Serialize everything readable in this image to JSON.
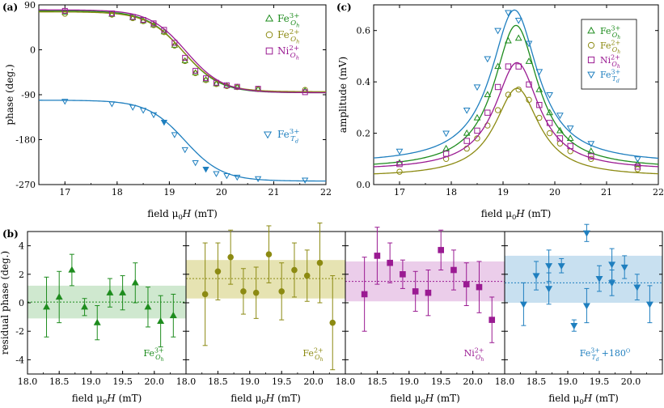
{
  "colors": {
    "green": "#1e8c1e",
    "olive": "#8c8a12",
    "purple": "#9a1a92",
    "blue": "#1f7fbf",
    "green_band": "#cfe8cf",
    "olive_band": "#e6e3b2",
    "purple_band": "#ebcdea",
    "blue_band": "#c8e0f0",
    "axis": "#000000"
  },
  "labels": {
    "panel_a": "(a)",
    "panel_b": "(b)",
    "panel_c": "(c)",
    "field_prefix": "field μ",
    "field_sub": "0",
    "field_var": "H",
    "field_unit": " (mT)",
    "phase_ylabel": "phase (deg.)",
    "amp_ylabel": "amplitude (mV)",
    "resid_ylabel": "residual phase (deg.)",
    "species": [
      {
        "id": "fe3oh",
        "base": "Fe",
        "sup": "3+",
        "sub": "Oh"
      },
      {
        "id": "fe2oh",
        "base": "Fe",
        "sup": "2+",
        "sub": "Oh"
      },
      {
        "id": "ni2oh",
        "base": "Ni",
        "sup": "2+",
        "sub": "Oh"
      },
      {
        "id": "fe3td",
        "base": "Fe",
        "sup": "3+",
        "sub": "Td"
      }
    ],
    "suffix_180": "+180",
    "suffix_180_sup": "O"
  },
  "chart_data": [
    {
      "id": "a",
      "type": "scatter",
      "title": "",
      "xlabel": "field μ0H (mT)",
      "ylabel": "phase (deg.)",
      "xlim": [
        16.5,
        22
      ],
      "ylim": [
        -270,
        90
      ],
      "xticks": [
        17,
        18,
        19,
        20,
        21,
        22
      ],
      "yticks": [
        90,
        0,
        -90,
        -180,
        -270
      ],
      "series": [
        {
          "name": "Fe3+ Oh",
          "x": [
            17,
            17.9,
            18.3,
            18.5,
            18.7,
            18.9,
            19.1,
            19.3,
            19.5,
            19.7,
            19.9,
            20.1,
            20.3,
            20.7,
            21.6
          ],
          "y": [
            75,
            71,
            64,
            58,
            50,
            36,
            9,
            -22,
            -46,
            -60,
            -68,
            -72,
            -75,
            -79,
            -82
          ]
        },
        {
          "name": "Fe2+ Oh",
          "x": [
            17,
            17.9,
            18.3,
            18.5,
            18.7,
            18.9,
            19.1,
            19.3,
            19.5,
            19.7,
            19.9,
            20.1,
            20.3,
            20.7,
            21.6
          ],
          "y": [
            72,
            70,
            63,
            57,
            49,
            35,
            8,
            -23,
            -47,
            -61,
            -69,
            -73,
            -75,
            -79,
            -80
          ]
        },
        {
          "name": "Ni2+ Oh",
          "x": [
            17,
            17.9,
            18.3,
            18.5,
            18.7,
            18.9,
            19.1,
            19.3,
            19.5,
            19.7,
            19.9,
            20.1,
            20.3,
            20.7,
            21.6
          ],
          "y": [
            78,
            73,
            66,
            60,
            53,
            40,
            14,
            -16,
            -42,
            -57,
            -66,
            -71,
            -74,
            -78,
            -85
          ]
        },
        {
          "name": "Fe3+ Td",
          "x": [
            17,
            17.9,
            18.3,
            18.5,
            18.7,
            18.9,
            19.1,
            19.3,
            19.5,
            19.7,
            19.9,
            20.1,
            20.3,
            20.7,
            21.6
          ],
          "y": [
            -103,
            -108,
            -115,
            -121,
            -130,
            -145,
            -170,
            -200,
            -226,
            -239,
            -248,
            -252,
            -255,
            -258,
            -261
          ]
        }
      ],
      "fit_curves": "sigmoid per series"
    },
    {
      "id": "c",
      "type": "scatter",
      "title": "",
      "xlabel": "field μ0H (mT)",
      "ylabel": "amplitude (mV)",
      "xlim": [
        16.5,
        22
      ],
      "ylim": [
        0,
        0.7
      ],
      "xticks": [
        17,
        18,
        19,
        20,
        21,
        22
      ],
      "yticks": [
        0,
        0.2,
        0.4,
        0.6
      ],
      "series": [
        {
          "name": "Fe3+ Oh",
          "x": [
            17,
            17.9,
            18.3,
            18.5,
            18.7,
            18.9,
            19.1,
            19.3,
            19.5,
            19.7,
            19.9,
            20.1,
            20.3,
            20.7,
            21.6
          ],
          "y": [
            0.085,
            0.14,
            0.2,
            0.26,
            0.35,
            0.46,
            0.56,
            0.57,
            0.48,
            0.37,
            0.28,
            0.21,
            0.18,
            0.13,
            0.08
          ]
        },
        {
          "name": "Fe2+ Oh",
          "x": [
            17,
            17.9,
            18.3,
            18.5,
            18.7,
            18.9,
            19.1,
            19.3,
            19.5,
            19.7,
            19.9,
            20.1,
            20.3,
            20.7,
            21.6
          ],
          "y": [
            0.05,
            0.1,
            0.14,
            0.18,
            0.23,
            0.29,
            0.35,
            0.37,
            0.33,
            0.26,
            0.2,
            0.16,
            0.13,
            0.1,
            0.06
          ]
        },
        {
          "name": "Ni2+ Oh",
          "x": [
            17,
            17.9,
            18.3,
            18.5,
            18.7,
            18.9,
            19.1,
            19.3,
            19.5,
            19.7,
            19.9,
            20.1,
            20.3,
            20.7,
            21.6
          ],
          "y": [
            0.08,
            0.12,
            0.17,
            0.21,
            0.28,
            0.38,
            0.46,
            0.46,
            0.39,
            0.31,
            0.24,
            0.18,
            0.15,
            0.11,
            0.07
          ]
        },
        {
          "name": "Fe3+ Td",
          "x": [
            17,
            17.9,
            18.3,
            18.5,
            18.7,
            18.9,
            19.1,
            19.3,
            19.5,
            19.7,
            19.9,
            20.1,
            20.3,
            20.7,
            21.6
          ],
          "y": [
            0.13,
            0.2,
            0.29,
            0.38,
            0.49,
            0.6,
            0.67,
            0.64,
            0.55,
            0.44,
            0.35,
            0.27,
            0.22,
            0.16,
            0.1
          ]
        }
      ],
      "fit_curves": "lorentzian per series"
    },
    {
      "id": "b1",
      "type": "scatter",
      "xlabel": "field μ0H (mT)",
      "ylabel": "residual phase (deg.)",
      "xlim": [
        18.0,
        20.5
      ],
      "ylim": [
        -5,
        5
      ],
      "xticks": [
        18.0,
        18.5,
        19.0,
        19.5,
        20.0
      ],
      "yticks": [
        -4,
        -2,
        0,
        2,
        4
      ],
      "mean": 0.05,
      "band": [
        -1.1,
        1.2
      ],
      "series": [
        {
          "name": "Fe3+ Oh",
          "x": [
            18.3,
            18.5,
            18.7,
            18.9,
            19.1,
            19.3,
            19.5,
            19.7,
            19.9,
            20.1,
            20.3
          ],
          "y": [
            -0.3,
            0.4,
            2.3,
            -0.3,
            -1.4,
            0.7,
            0.7,
            1.4,
            -0.3,
            -1.3,
            -0.9
          ],
          "err": [
            2.1,
            1.8,
            1.1,
            0.6,
            1.2,
            1.0,
            1.2,
            1.4,
            1.4,
            1.8,
            1.5
          ]
        }
      ]
    },
    {
      "id": "b2",
      "type": "scatter",
      "xlabel": "field μ0H (mT)",
      "xlim": [
        18.0,
        20.5
      ],
      "ylim": [
        -5,
        5
      ],
      "xticks": [
        18.0,
        18.5,
        19.0,
        19.5,
        20.0
      ],
      "mean": 1.7,
      "band": [
        0.3,
        3.0
      ],
      "series": [
        {
          "name": "Fe2+ Oh",
          "x": [
            18.3,
            18.5,
            18.7,
            18.9,
            19.1,
            19.3,
            19.5,
            19.7,
            19.9,
            20.1,
            20.3
          ],
          "y": [
            0.6,
            2.2,
            3.2,
            0.8,
            0.7,
            3.4,
            0.8,
            2.3,
            1.9,
            2.8,
            -1.4
          ],
          "err": [
            3.6,
            2.0,
            1.9,
            1.6,
            1.8,
            2.0,
            2.0,
            1.9,
            1.8,
            2.8,
            3.3
          ]
        }
      ]
    },
    {
      "id": "b3",
      "type": "scatter",
      "xlabel": "field μ0H (mT)",
      "xlim": [
        18.0,
        20.5
      ],
      "ylim": [
        -5,
        5
      ],
      "xticks": [
        18.0,
        18.5,
        19.0,
        19.5,
        20.0
      ],
      "mean": 1.5,
      "band": [
        0.1,
        2.9
      ],
      "series": [
        {
          "name": "Ni2+ Oh",
          "x": [
            18.3,
            18.5,
            18.7,
            18.9,
            19.1,
            19.3,
            19.5,
            19.7,
            19.9,
            20.1,
            20.3
          ],
          "y": [
            0.6,
            3.3,
            2.8,
            2.0,
            0.8,
            0.7,
            3.7,
            2.3,
            1.3,
            1.1,
            -1.2
          ],
          "err": [
            2.6,
            2.0,
            1.4,
            1.0,
            1.4,
            1.6,
            1.4,
            1.4,
            1.5,
            1.8,
            1.6
          ]
        }
      ]
    },
    {
      "id": "b4",
      "type": "scatter",
      "xlabel": "field μ0H (mT)",
      "xlim": [
        18.0,
        20.5
      ],
      "ylim": [
        -5,
        5
      ],
      "xticks": [
        18.0,
        18.5,
        19.0,
        19.5,
        20.0
      ],
      "mean": 1.4,
      "band": [
        0.0,
        3.3
      ],
      "series": [
        {
          "name": "Fe3+ Td +180",
          "x": [
            18.3,
            18.5,
            18.7,
            18.7,
            18.9,
            19.1,
            19.3,
            19.3,
            19.5,
            19.7,
            19.7,
            19.9,
            20.1,
            20.3
          ],
          "y": [
            -0.1,
            1.9,
            2.6,
            1.0,
            2.6,
            -1.6,
            4.9,
            -0.2,
            1.7,
            1.4,
            2.7,
            2.5,
            1.1,
            -0.1
          ],
          "err": [
            1.5,
            1.0,
            1.1,
            1.1,
            0.5,
            0.4,
            0.6,
            1.2,
            0.9,
            0.9,
            1.1,
            0.8,
            0.9,
            1.3
          ]
        }
      ]
    }
  ]
}
